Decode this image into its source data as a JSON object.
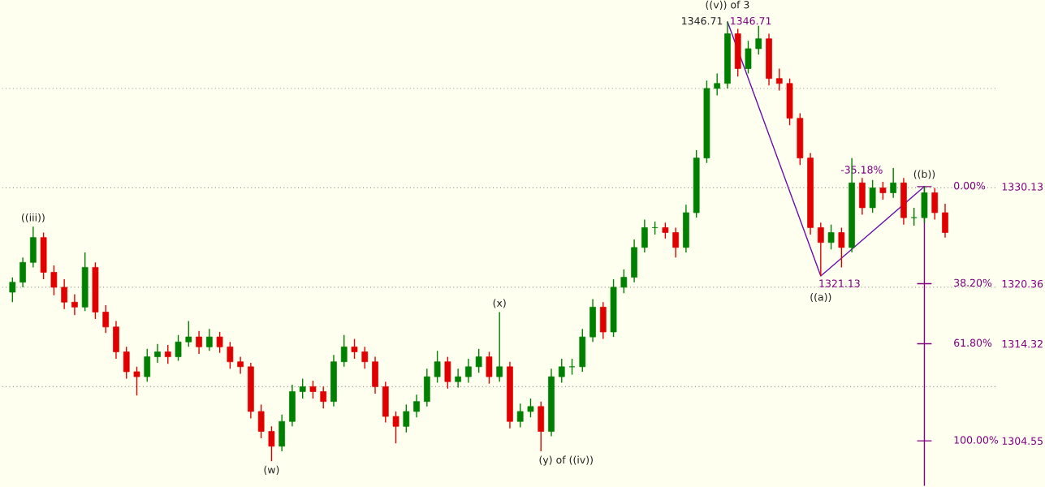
{
  "chart_data": {
    "type": "candlestick",
    "categories": [
      null,
      null,
      null,
      null,
      null,
      null,
      null,
      null,
      null,
      null,
      null,
      null,
      null,
      null,
      null,
      null,
      null,
      null,
      null,
      null,
      null,
      null,
      null,
      null,
      null,
      null,
      null,
      null,
      null,
      null,
      null,
      null,
      null,
      null,
      null,
      null,
      null,
      null,
      null,
      null,
      null,
      null,
      null,
      null,
      null,
      null,
      null,
      null,
      null,
      null,
      null,
      null,
      null,
      null,
      null,
      null,
      null,
      null,
      null,
      null,
      null,
      null,
      null,
      null,
      null,
      null,
      null,
      null,
      null,
      null,
      null,
      null,
      null,
      null,
      null,
      null,
      null,
      null,
      null,
      null,
      null,
      null,
      null,
      null,
      null,
      null,
      null,
      null,
      null,
      null,
      null
    ],
    "ohlc": [
      [
        1319.5,
        1321.0,
        1318.5,
        1320.5
      ],
      [
        1320.5,
        1323.0,
        1320.0,
        1322.5
      ],
      [
        1322.5,
        1326.1,
        1322.0,
        1325.0
      ],
      [
        1325.0,
        1325.5,
        1320.8,
        1321.5
      ],
      [
        1321.5,
        1322.2,
        1319.2,
        1320.0
      ],
      [
        1320.0,
        1320.8,
        1317.8,
        1318.5
      ],
      [
        1318.5,
        1319.3,
        1317.2,
        1318.0
      ],
      [
        1318.0,
        1323.5,
        1317.6,
        1322.0
      ],
      [
        1322.0,
        1322.5,
        1316.8,
        1317.5
      ],
      [
        1317.5,
        1318.2,
        1315.4,
        1316.0
      ],
      [
        1316.0,
        1316.6,
        1312.8,
        1313.5
      ],
      [
        1313.5,
        1314.0,
        1310.8,
        1311.5
      ],
      [
        1311.5,
        1312.0,
        1309.1,
        1311.0
      ],
      [
        1311.0,
        1313.8,
        1310.5,
        1313.0
      ],
      [
        1313.0,
        1314.3,
        1312.4,
        1313.5
      ],
      [
        1313.5,
        1314.2,
        1312.3,
        1313.0
      ],
      [
        1313.0,
        1315.2,
        1312.6,
        1314.5
      ],
      [
        1314.5,
        1316.6,
        1314.0,
        1315.0
      ],
      [
        1315.0,
        1315.6,
        1313.3,
        1314.0
      ],
      [
        1314.0,
        1315.8,
        1313.6,
        1315.0
      ],
      [
        1315.0,
        1315.5,
        1313.4,
        1314.0
      ],
      [
        1314.0,
        1314.5,
        1311.8,
        1312.5
      ],
      [
        1312.5,
        1313.0,
        1311.3,
        1312.0
      ],
      [
        1312.0,
        1312.4,
        1306.8,
        1307.5
      ],
      [
        1307.5,
        1308.2,
        1304.8,
        1305.5
      ],
      [
        1305.5,
        1306.0,
        1302.5,
        1304.0
      ],
      [
        1304.0,
        1307.2,
        1303.5,
        1306.5
      ],
      [
        1306.5,
        1310.2,
        1306.0,
        1309.5
      ],
      [
        1309.5,
        1310.8,
        1308.8,
        1310.0
      ],
      [
        1310.0,
        1310.6,
        1308.8,
        1309.5
      ],
      [
        1309.5,
        1310.0,
        1307.8,
        1308.5
      ],
      [
        1308.5,
        1313.2,
        1308.0,
        1312.5
      ],
      [
        1312.5,
        1315.2,
        1312.0,
        1314.0
      ],
      [
        1314.0,
        1314.8,
        1312.8,
        1313.5
      ],
      [
        1313.5,
        1314.0,
        1311.8,
        1312.5
      ],
      [
        1312.5,
        1313.0,
        1309.3,
        1310.0
      ],
      [
        1310.0,
        1310.5,
        1306.4,
        1307.0
      ],
      [
        1307.0,
        1307.5,
        1304.3,
        1306.0
      ],
      [
        1306.0,
        1308.2,
        1305.4,
        1307.5
      ],
      [
        1307.5,
        1309.2,
        1306.9,
        1308.5
      ],
      [
        1308.5,
        1311.8,
        1308.0,
        1311.0
      ],
      [
        1311.0,
        1313.6,
        1310.4,
        1312.5
      ],
      [
        1312.5,
        1313.0,
        1309.8,
        1310.5
      ],
      [
        1310.5,
        1311.8,
        1309.9,
        1311.0
      ],
      [
        1311.0,
        1312.8,
        1310.4,
        1312.0
      ],
      [
        1312.0,
        1313.8,
        1311.4,
        1313.0
      ],
      [
        1313.0,
        1313.5,
        1310.3,
        1311.0
      ],
      [
        1311.0,
        1317.5,
        1310.5,
        1312.0
      ],
      [
        1312.0,
        1312.5,
        1305.8,
        1306.5
      ],
      [
        1306.5,
        1308.3,
        1305.9,
        1307.5
      ],
      [
        1307.5,
        1308.8,
        1306.9,
        1308.0
      ],
      [
        1308.0,
        1308.5,
        1303.5,
        1305.5
      ],
      [
        1305.5,
        1311.8,
        1305.0,
        1311.0
      ],
      [
        1311.0,
        1312.8,
        1310.4,
        1312.0
      ],
      [
        1312.0,
        1312.8,
        1311.2,
        1312.0
      ],
      [
        1312.0,
        1315.8,
        1311.5,
        1315.0
      ],
      [
        1315.0,
        1318.8,
        1314.5,
        1318.0
      ],
      [
        1318.0,
        1318.5,
        1314.8,
        1315.5
      ],
      [
        1315.5,
        1320.8,
        1315.0,
        1320.0
      ],
      [
        1320.0,
        1321.8,
        1319.4,
        1321.0
      ],
      [
        1321.0,
        1324.8,
        1320.5,
        1324.0
      ],
      [
        1324.0,
        1326.8,
        1323.5,
        1326.0
      ],
      [
        1326.0,
        1326.6,
        1325.3,
        1326.0
      ],
      [
        1326.0,
        1326.5,
        1324.9,
        1325.5
      ],
      [
        1325.5,
        1326.0,
        1323.0,
        1324.0
      ],
      [
        1324.0,
        1328.3,
        1323.5,
        1327.5
      ],
      [
        1327.5,
        1333.8,
        1327.0,
        1333.0
      ],
      [
        1333.0,
        1340.8,
        1332.5,
        1340.0
      ],
      [
        1340.0,
        1341.5,
        1339.3,
        1340.5
      ],
      [
        1340.5,
        1346.71,
        1340.0,
        1345.5
      ],
      [
        1345.5,
        1346.0,
        1341.2,
        1342.0
      ],
      [
        1342.0,
        1344.8,
        1341.5,
        1344.0
      ],
      [
        1344.0,
        1346.3,
        1343.4,
        1345.0
      ],
      [
        1345.0,
        1345.5,
        1340.3,
        1341.0
      ],
      [
        1341.0,
        1342.0,
        1339.8,
        1340.5
      ],
      [
        1340.5,
        1341.0,
        1336.3,
        1337.0
      ],
      [
        1337.0,
        1337.5,
        1332.3,
        1333.0
      ],
      [
        1333.0,
        1333.5,
        1325.3,
        1326.0
      ],
      [
        1326.0,
        1326.5,
        1321.13,
        1324.5
      ],
      [
        1324.5,
        1326.3,
        1323.8,
        1325.5
      ],
      [
        1325.5,
        1326.0,
        1322.0,
        1324.0
      ],
      [
        1324.0,
        1333.0,
        1323.5,
        1330.5
      ],
      [
        1330.5,
        1331.0,
        1327.3,
        1328.0
      ],
      [
        1328.0,
        1330.8,
        1327.5,
        1330.0
      ],
      [
        1330.0,
        1330.6,
        1328.8,
        1329.5
      ],
      [
        1329.5,
        1332.0,
        1329.0,
        1330.5
      ],
      [
        1330.5,
        1331.0,
        1326.3,
        1327.0
      ],
      [
        1327.0,
        1328.0,
        1326.2,
        1327.0
      ],
      [
        1327.0,
        1330.13,
        1326.5,
        1329.5
      ],
      [
        1329.5,
        1330.0,
        1326.8,
        1327.5
      ],
      [
        1327.5,
        1328.4,
        1325.0,
        1325.5
      ]
    ],
    "series": [
      {
        "type": "line",
        "color": "#6a0dad",
        "values": [
          null,
          null,
          null,
          null,
          null,
          null,
          null,
          null,
          null,
          null,
          null,
          null,
          null,
          null,
          null,
          null,
          null,
          null,
          null,
          null,
          null,
          null,
          null,
          null,
          null,
          null,
          null,
          null,
          null,
          null,
          null,
          null,
          null,
          null,
          null,
          null,
          null,
          null,
          null,
          null,
          null,
          null,
          null,
          null,
          null,
          null,
          null,
          null,
          null,
          null,
          null,
          null,
          null,
          null,
          null,
          null,
          null,
          null,
          null,
          null,
          null,
          null,
          null,
          null,
          null,
          null,
          null,
          null,
          null,
          1346.71,
          null,
          null,
          null,
          null,
          null,
          null,
          null,
          null,
          1321.13,
          null,
          null,
          null,
          null,
          null,
          null,
          null,
          null,
          null,
          1330.13,
          null,
          null
        ]
      }
    ],
    "ylim": [
      1300.0,
      1348.8
    ],
    "yticks": [
      {
        "value": 1304.55,
        "label": "1304.55"
      },
      {
        "value": 1314.32,
        "label": "1314.32"
      },
      {
        "value": 1320.36,
        "label": "1320.36"
      },
      {
        "value": 1330.13,
        "label": "1330.13"
      }
    ],
    "ref_lines": [
      {
        "axis": "y",
        "value": 1310,
        "color": "#999999",
        "line_style": "dotted"
      },
      {
        "axis": "y",
        "value": 1320,
        "color": "#999999",
        "line_style": "dotted"
      },
      {
        "axis": "y",
        "value": 1330,
        "color": "#999999",
        "line_style": "dotted"
      },
      {
        "axis": "y",
        "value": 1340,
        "color": "#999999",
        "line_style": "dotted"
      }
    ],
    "annotations": [
      "((iii))",
      "(w)",
      "(x)",
      "(y) of ((iv))",
      "((v)) of 3",
      "1346.71",
      "1346.71",
      "1321.13",
      "((a))",
      "((b))",
      "-35.18%",
      "0.00%",
      "38.20%",
      "61.80%",
      "100.00%"
    ]
  }
}
